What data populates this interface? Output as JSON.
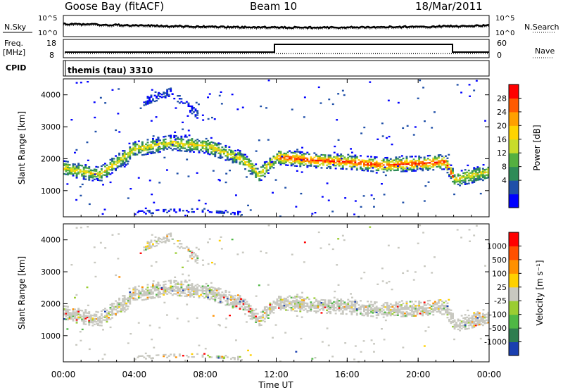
{
  "header": {
    "station": "Goose Bay (fitACF)",
    "beam": "Beam 10",
    "date": "18/Mar/2011"
  },
  "noise_panel": {
    "left_label": "N.Sky",
    "left_ticks": [
      "10^5",
      "10^0"
    ],
    "right_ticks": [
      "10^5",
      "10^0"
    ],
    "right_label": "N.Search"
  },
  "freq_panel": {
    "left_label_line1": "Freq.",
    "left_label_line2": "[MHz]",
    "left_ticks": [
      "18",
      "8"
    ],
    "right_ticks": [
      "60",
      "0"
    ],
    "right_label": "Nave"
  },
  "cpid": {
    "label": "CPID",
    "program": "themis (tau) 3310"
  },
  "power_panel": {
    "ylabel": "Slant Range [km]",
    "yticks": [
      "4000",
      "3000",
      "2000",
      "1000"
    ],
    "colorbar_label": "Power [dB]",
    "colorbar_ticks": [
      "28",
      "24",
      "20",
      "16",
      "12",
      "8",
      "4"
    ],
    "colors": [
      "#0000ff",
      "#1f4fa8",
      "#2e8b57",
      "#55b040",
      "#c8dc2a",
      "#ffd400",
      "#ffa000",
      "#ff5a00",
      "#ff0000"
    ]
  },
  "velocity_panel": {
    "ylabel": "Slant Range [km]",
    "yticks": [
      "4000",
      "3000",
      "2000",
      "1000"
    ],
    "colorbar_label": "Velocity [m s⁻¹]",
    "colorbar_ticks": [
      "1000",
      "500",
      "100",
      "25",
      "-25",
      "-100",
      "-500",
      "-1000"
    ],
    "colors": [
      "#1a3fb0",
      "#2e7d4f",
      "#4fb845",
      "#9acd32",
      "#c8c8c0",
      "#ffd000",
      "#ff9000",
      "#ff5000",
      "#ff0000"
    ]
  },
  "xaxis": {
    "label": "Time UT",
    "ticks": [
      "00:00",
      "04:00",
      "08:00",
      "12:00",
      "16:00",
      "20:00",
      "00:00"
    ]
  },
  "chart_data": {
    "type": "heatmap",
    "title": "Goose Bay (fitACF) Beam 10 18/Mar/2011",
    "xlabel": "Time UT",
    "ylabel": "Slant Range [km]",
    "xlim_hours": [
      0,
      24
    ],
    "ylim_km": [
      180,
      4500
    ],
    "scatter_bands": [
      {
        "name": "main",
        "points": [
          [
            0,
            1700
          ],
          [
            2,
            1500
          ],
          [
            4,
            2300
          ],
          [
            6,
            2500
          ],
          [
            8,
            2400
          ],
          [
            10,
            2000
          ],
          [
            11,
            1500
          ],
          [
            12,
            2050
          ],
          [
            14,
            1950
          ],
          [
            16,
            1900
          ],
          [
            18,
            1800
          ],
          [
            20,
            1850
          ],
          [
            21.5,
            1900
          ],
          [
            22,
            1350
          ],
          [
            24,
            1600
          ]
        ],
        "thickness_km": 450
      },
      {
        "name": "near-range",
        "points": [
          [
            4,
            320
          ],
          [
            6,
            380
          ],
          [
            8,
            400
          ],
          [
            10,
            300
          ]
        ],
        "thickness_km": 120
      },
      {
        "name": "upper",
        "points": [
          [
            4.5,
            3800
          ],
          [
            6,
            4100
          ],
          [
            7.5,
            3400
          ]
        ],
        "thickness_km": 250
      }
    ],
    "power_db_peak": 28,
    "frequency_mhz": {
      "start": 10,
      "step_time": 12,
      "after": 15,
      "step_back": 22
    },
    "nave": {
      "start": 0,
      "after": 50
    }
  }
}
